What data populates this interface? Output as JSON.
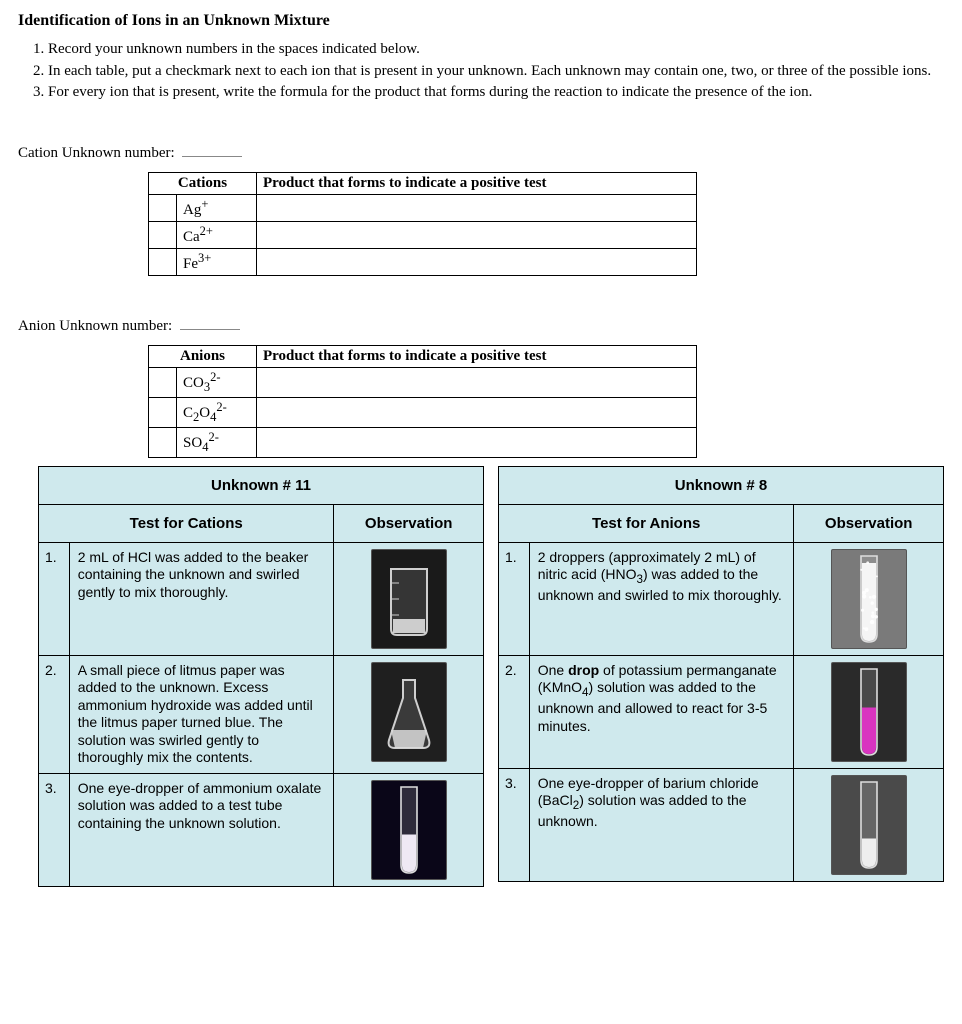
{
  "title": "Identification of Ions in an Unknown Mixture",
  "instructions": [
    "Record your unknown numbers in the spaces indicated below.",
    "In each table, put a checkmark next to each ion that is present in your unknown.  Each unknown may contain one, two, or three of the possible ions.",
    "For every ion that is present, write the formula for the product that forms during the reaction to indicate the presence of the ion."
  ],
  "cation_section": {
    "label": "Cation Unknown number:",
    "headers": {
      "ions": "Cations",
      "product": "Product that forms to indicate a positive test"
    },
    "rows": [
      {
        "ion_html": "Ag<sup>+</sup>"
      },
      {
        "ion_html": "Ca<sup>2+</sup>"
      },
      {
        "ion_html": "Fe<sup>3+</sup>"
      }
    ]
  },
  "anion_section": {
    "label": "Anion Unknown number:",
    "headers": {
      "ions": "Anions",
      "product": "Product that forms to indicate a positive test"
    },
    "rows": [
      {
        "ion_html": "CO<sub>3</sub><sup>2-</sup>"
      },
      {
        "ion_html": "C<sub>2</sub>O<sub>4</sub><sup>2-</sup>"
      },
      {
        "ion_html": "SO<sub>4</sub><sup>2-</sup>"
      }
    ]
  },
  "panel_bg": "#cfe9ed",
  "experiments": {
    "left": {
      "title": "Unknown # 11",
      "col_test": "Test for Cations",
      "col_obs": "Observation",
      "steps": [
        {
          "n": "1.",
          "text": "2 mL of HCl was added to the beaker containing the unknown and swirled gently to mix thoroughly.",
          "obs": {
            "type": "beaker",
            "bg": "#1a1a1a",
            "liquid": "#e8e8e8",
            "liquid_level": 0.25
          }
        },
        {
          "n": "2.",
          "text": "A small piece of litmus paper was added to the unknown. Excess ammonium hydroxide was added until the litmus paper turned blue.  The solution was swirled gently to thoroughly mix the contents.",
          "obs": {
            "type": "flask",
            "bg": "#1f1f1f",
            "liquid": "#dcdcdc",
            "liquid_level": 0.3
          }
        },
        {
          "n": "3.",
          "text": "One eye-dropper of ammonium oxalate solution was added to a test tube containing the unknown solution.",
          "obs": {
            "type": "tube",
            "bg": "#0a0618",
            "liquid": "#efe9f4",
            "liquid_level": 0.45
          }
        }
      ]
    },
    "right": {
      "title": "Unknown # 8",
      "col_test": "Test for Anions",
      "col_obs": "Observation",
      "steps": [
        {
          "n": "1.",
          "text_html": "2 droppers (approximately 2 mL) of nitric acid (HNO<sub>3</sub>) was added to the unknown and swirled to mix thoroughly.",
          "obs": {
            "type": "tube",
            "bg": "#7a7a7a",
            "liquid": "#f5f5f5",
            "liquid_level": 0.9,
            "fizz": true
          }
        },
        {
          "n": "2.",
          "text_html": "One <b>drop</b> of potassium permanganate (KMnO<sub>4</sub>) solution was added to the unknown and allowed to react for 3-5 minutes.",
          "obs": {
            "type": "tube",
            "bg": "#2a2a2a",
            "liquid": "#d934c0",
            "liquid_level": 0.55
          }
        },
        {
          "n": "3.",
          "text_html": "One eye-dropper of barium chloride (BaCl<sub>2</sub>) solution was added to the unknown.",
          "obs": {
            "type": "tube",
            "bg": "#4a4a4a",
            "liquid": "#eeeeee",
            "liquid_level": 0.35
          }
        }
      ]
    }
  }
}
